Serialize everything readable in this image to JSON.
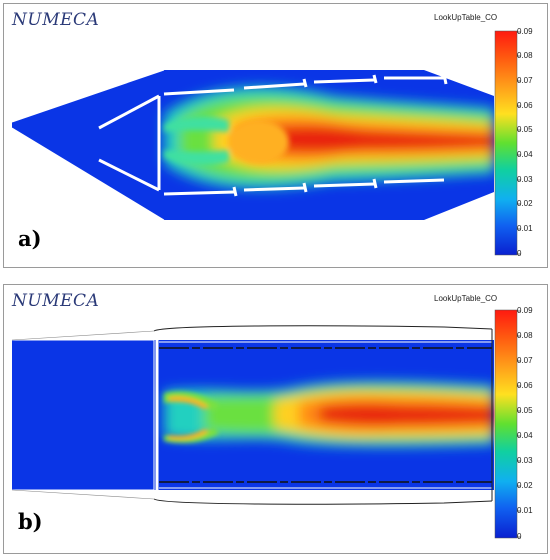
{
  "panels": [
    {
      "brand": "NUMECA",
      "label": "a)",
      "colorbar": {
        "title": "LookUpTable_CO",
        "ticks": [
          "0.09",
          "0.08",
          "0.07",
          "0.06",
          "0.05",
          "0.04",
          "0.03",
          "0.02",
          "0.01",
          "0"
        ]
      }
    },
    {
      "brand": "NUMECA",
      "label": "b)",
      "colorbar": {
        "title": "LookUpTable_CO",
        "ticks": [
          "0.09",
          "0.08",
          "0.07",
          "0.06",
          "0.05",
          "0.04",
          "0.03",
          "0.02",
          "0.01",
          "0"
        ]
      }
    }
  ],
  "colors": {
    "background_field": "#0a35e6",
    "low": "#0000c8",
    "mid": "#3ee03e",
    "high": "#e01010"
  }
}
